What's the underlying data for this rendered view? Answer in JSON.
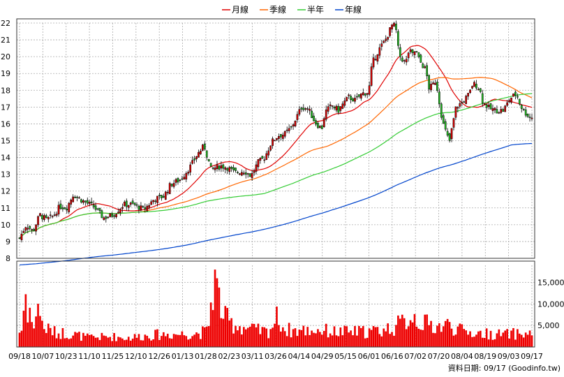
{
  "chart_data": {
    "type": "candlestick+volume",
    "legend": {
      "position": "top-center",
      "entries": [
        {
          "name": "月線",
          "color": "#e00000"
        },
        {
          "name": "季線",
          "color": "#ff6600"
        },
        {
          "name": "半年",
          "color": "#33cc33"
        },
        {
          "name": "年線",
          "color": "#0044cc"
        }
      ]
    },
    "price_axis": {
      "range": [
        8,
        22
      ],
      "ticks": [
        8,
        9,
        10,
        11,
        12,
        13,
        14,
        15,
        16,
        17,
        18,
        19,
        20,
        21,
        22
      ]
    },
    "volume_axis": {
      "range": [
        0,
        19000
      ],
      "ticks": [
        5000,
        10000,
        15000
      ],
      "tick_labels": [
        "5,000",
        "10,000",
        "15,000"
      ]
    },
    "x_labels": [
      "09/18",
      "10/07",
      "10/23",
      "11/10",
      "11/25",
      "12/10",
      "12/26",
      "01/13",
      "01/28",
      "02/23",
      "03/11",
      "03/26",
      "04/14",
      "04/29",
      "05/15",
      "06/01",
      "06/16",
      "07/02",
      "07/20",
      "08/04",
      "08/19",
      "09/03",
      "09/17"
    ],
    "grid": true,
    "price_key_points": [
      [
        0,
        9.2
      ],
      [
        10,
        10.0
      ],
      [
        20,
        9.6
      ],
      [
        30,
        10.6
      ],
      [
        40,
        10.3
      ],
      [
        50,
        10.5
      ],
      [
        60,
        11.1
      ],
      [
        70,
        11.0
      ],
      [
        80,
        11.8
      ],
      [
        95,
        11.4
      ],
      [
        110,
        11.1
      ],
      [
        125,
        10.4
      ],
      [
        140,
        10.6
      ],
      [
        155,
        11.2
      ],
      [
        170,
        11.2
      ],
      [
        185,
        10.9
      ],
      [
        200,
        11.5
      ],
      [
        215,
        11.7
      ],
      [
        225,
        12.4
      ],
      [
        240,
        12.7
      ],
      [
        255,
        13.5
      ],
      [
        265,
        14.2
      ],
      [
        275,
        14.7
      ],
      [
        285,
        13.3
      ],
      [
        300,
        13.5
      ],
      [
        310,
        13.4
      ],
      [
        320,
        13.1
      ],
      [
        335,
        13.2
      ],
      [
        345,
        12.9
      ],
      [
        355,
        13.7
      ],
      [
        365,
        14.0
      ],
      [
        375,
        14.9
      ],
      [
        385,
        15.3
      ],
      [
        395,
        15.4
      ],
      [
        405,
        15.8
      ],
      [
        415,
        16.6
      ],
      [
        420,
        17.0
      ],
      [
        430,
        16.9
      ],
      [
        440,
        16.1
      ],
      [
        450,
        15.7
      ],
      [
        455,
        16.7
      ],
      [
        465,
        17.1
      ],
      [
        475,
        16.8
      ],
      [
        480,
        17.1
      ],
      [
        490,
        17.6
      ],
      [
        500,
        17.4
      ],
      [
        510,
        17.8
      ],
      [
        520,
        17.9
      ],
      [
        525,
        19.6
      ],
      [
        535,
        20.4
      ],
      [
        545,
        21.0
      ],
      [
        555,
        21.9
      ],
      [
        560,
        21.8
      ],
      [
        565,
        20.1
      ],
      [
        575,
        19.6
      ],
      [
        580,
        20.4
      ],
      [
        585,
        20.1
      ],
      [
        590,
        20.4
      ],
      [
        595,
        19.8
      ],
      [
        600,
        19.5
      ],
      [
        605,
        19.2
      ],
      [
        610,
        18.1
      ],
      [
        615,
        18.3
      ],
      [
        620,
        18.6
      ],
      [
        630,
        16.1
      ],
      [
        640,
        14.9
      ],
      [
        650,
        17.0
      ],
      [
        660,
        17.3
      ],
      [
        670,
        17.8
      ],
      [
        675,
        18.4
      ],
      [
        680,
        18.3
      ],
      [
        685,
        18.1
      ],
      [
        690,
        17.3
      ],
      [
        700,
        16.9
      ],
      [
        710,
        16.8
      ],
      [
        720,
        16.8
      ],
      [
        725,
        17.1
      ],
      [
        730,
        17.5
      ],
      [
        740,
        17.8
      ],
      [
        745,
        17.2
      ],
      [
        750,
        16.8
      ],
      [
        760,
        16.4
      ]
    ],
    "volume_key_points": [
      [
        0,
        3500
      ],
      [
        5,
        4500
      ],
      [
        8,
        15000
      ],
      [
        11,
        8500
      ],
      [
        15,
        9000
      ],
      [
        22,
        3000
      ],
      [
        26,
        13000
      ],
      [
        30,
        8000
      ],
      [
        35,
        4500
      ],
      [
        45,
        4000
      ],
      [
        55,
        3200
      ],
      [
        65,
        3300
      ],
      [
        75,
        3000
      ],
      [
        85,
        2800
      ],
      [
        100,
        2200
      ],
      [
        120,
        2300
      ],
      [
        140,
        2400
      ],
      [
        160,
        2100
      ],
      [
        180,
        2500
      ],
      [
        200,
        2800
      ],
      [
        220,
        3000
      ],
      [
        240,
        3000
      ],
      [
        260,
        3100
      ],
      [
        280,
        3600
      ],
      [
        290,
        16000
      ],
      [
        295,
        13000
      ],
      [
        300,
        9000
      ],
      [
        305,
        7000
      ],
      [
        315,
        5500
      ],
      [
        330,
        4800
      ],
      [
        350,
        3900
      ],
      [
        370,
        3500
      ],
      [
        385,
        7200
      ],
      [
        395,
        4000
      ],
      [
        420,
        3800
      ],
      [
        445,
        4000
      ],
      [
        470,
        3500
      ],
      [
        500,
        3500
      ],
      [
        520,
        3600
      ],
      [
        540,
        3900
      ],
      [
        560,
        4800
      ],
      [
        575,
        6000
      ],
      [
        585,
        7500
      ],
      [
        600,
        5500
      ],
      [
        625,
        4800
      ],
      [
        640,
        5200
      ],
      [
        660,
        3600
      ],
      [
        690,
        3100
      ],
      [
        720,
        2900
      ],
      [
        740,
        3100
      ],
      [
        760,
        3000
      ]
    ]
  },
  "footer": {
    "date_label": "資料日期: 09/17  (Goodinfo.tw)"
  }
}
